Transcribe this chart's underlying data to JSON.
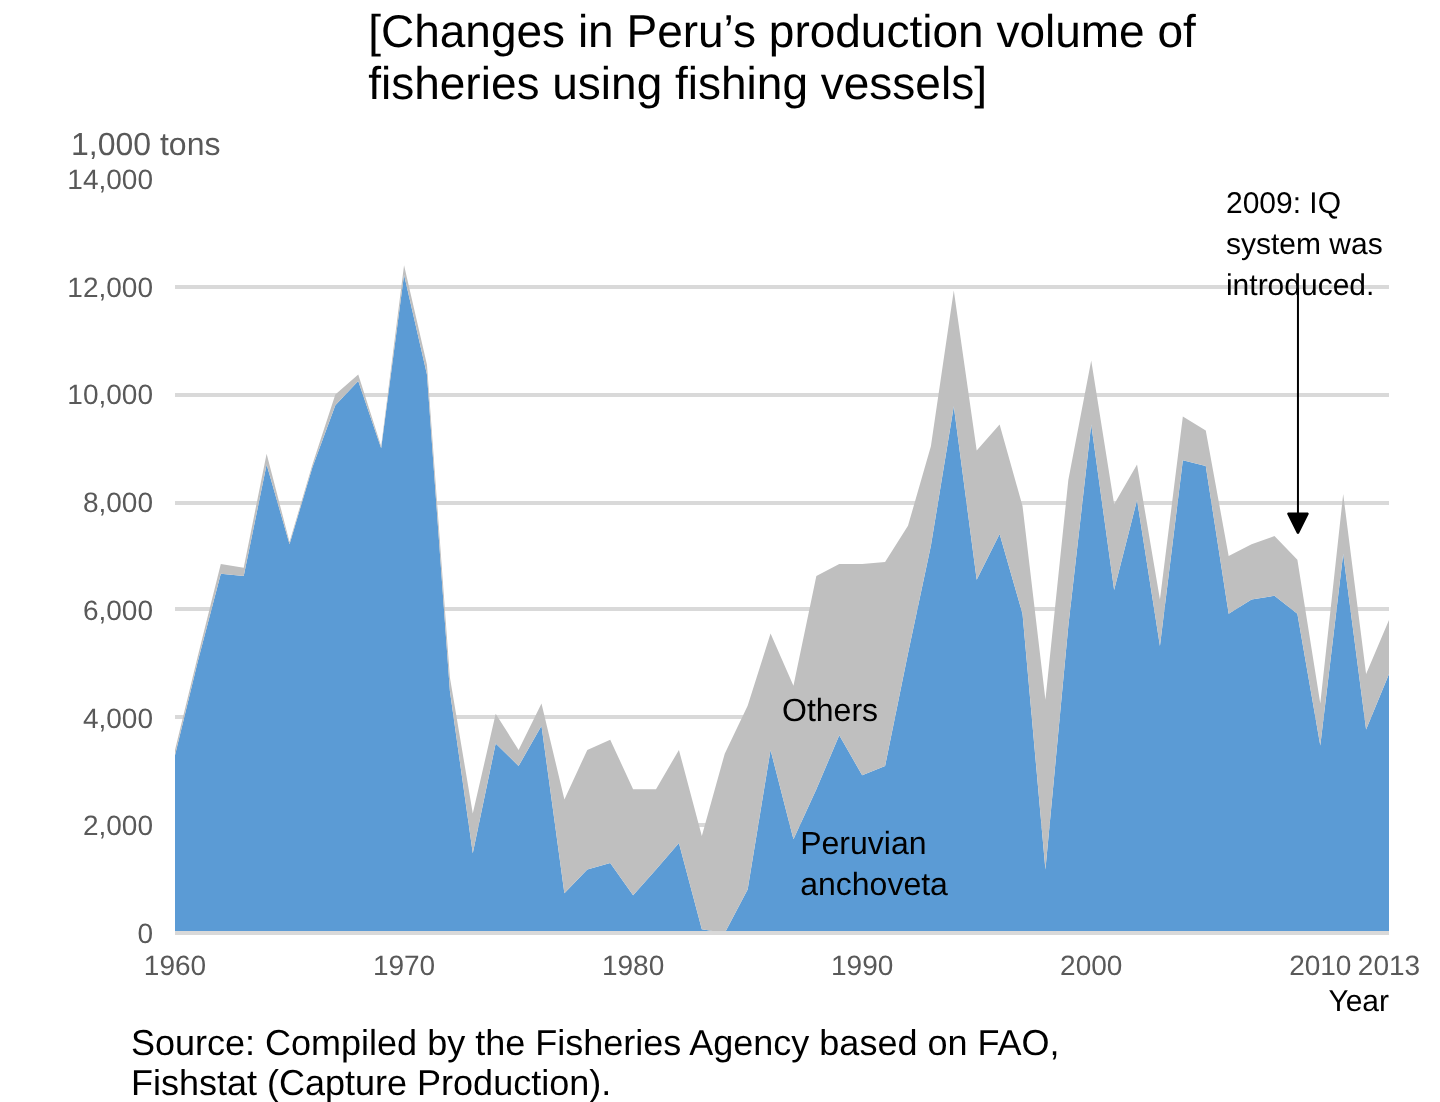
{
  "chart_data": {
    "type": "area",
    "stacked": true,
    "title": "[Changes in Peru’s production volume of fisheries using fishing vessels]",
    "ylabel": "1,000 tons",
    "xlabel": "Year",
    "x": [
      1960,
      1961,
      1962,
      1963,
      1964,
      1965,
      1966,
      1967,
      1968,
      1969,
      1970,
      1971,
      1972,
      1973,
      1974,
      1975,
      1976,
      1977,
      1978,
      1979,
      1980,
      1981,
      1982,
      1983,
      1984,
      1985,
      1986,
      1987,
      1988,
      1989,
      1990,
      1991,
      1992,
      1993,
      1994,
      1995,
      1996,
      1997,
      1998,
      1999,
      2000,
      2001,
      2002,
      2003,
      2004,
      2005,
      2006,
      2007,
      2008,
      2009,
      2010,
      2011,
      2012,
      2013
    ],
    "series": [
      {
        "name": "Peruvian anchoveta",
        "color": "#5b9bd5",
        "values": [
          3300,
          5050,
          6670,
          6630,
          8700,
          7220,
          8650,
          9800,
          10250,
          9000,
          12220,
          10370,
          4500,
          1480,
          3520,
          3100,
          3850,
          740,
          1180,
          1300,
          700,
          1180,
          1670,
          70,
          0,
          810,
          3400,
          1740,
          2670,
          3670,
          2930,
          3100,
          5190,
          7190,
          9780,
          6560,
          7410,
          5930,
          1180,
          5700,
          9440,
          6370,
          8040,
          5330,
          8780,
          8670,
          5930,
          6190,
          6260,
          5930,
          3480,
          7040,
          3780,
          4810
        ]
      },
      {
        "name": "Others",
        "color": "#bfbfbf",
        "values": [
          100,
          100,
          180,
          150,
          200,
          40,
          50,
          200,
          120,
          40,
          180,
          180,
          250,
          740,
          550,
          300,
          410,
          1740,
          2220,
          2290,
          1970,
          1490,
          1730,
          1730,
          3330,
          3410,
          2160,
          2850,
          3960,
          3180,
          3920,
          3790,
          2370,
          1850,
          2150,
          2400,
          2030,
          2000,
          3150,
          2710,
          1190,
          1590,
          660,
          860,
          810,
          660,
          1070,
          1030,
          1110,
          1000,
          780,
          1110,
          1030,
          1000
        ]
      }
    ],
    "xlim": [
      1960,
      2013
    ],
    "xticks": [
      1960,
      1970,
      1980,
      1990,
      2000,
      2010,
      2013
    ],
    "ylim": [
      0,
      14000
    ],
    "yticks": [
      {
        "value": 0,
        "label": "0"
      },
      {
        "value": 2000,
        "label": "2,000"
      },
      {
        "value": 4000,
        "label": "4,000"
      },
      {
        "value": 6000,
        "label": "6,000"
      },
      {
        "value": 8000,
        "label": "8,000"
      },
      {
        "value": 10000,
        "label": "10,000"
      },
      {
        "value": 12000,
        "label": "12,000"
      },
      {
        "value": 14000,
        "label": "14,000"
      }
    ],
    "grid": "y",
    "annotations": [
      "2009: IQ system was introduced.",
      "Source: Compiled by the Fisheries Agency based on FAO, Fishstat (Capture Production)."
    ]
  }
}
